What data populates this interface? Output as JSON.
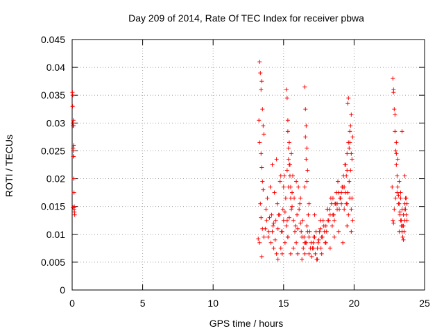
{
  "chart_data": {
    "type": "scatter",
    "title": "Day 209 of 2014, Rate Of TEC Index for receiver pbwa",
    "xlabel": "GPS time / hours",
    "ylabel": "ROTI / TECUs",
    "xlim": [
      0,
      25
    ],
    "ylim": [
      0,
      0.045
    ],
    "xticks": [
      "0",
      "5",
      "10",
      "15",
      "20",
      "25"
    ],
    "yticks": [
      "0",
      "0.005",
      "0.01",
      "0.015",
      "0.02",
      "0.025",
      "0.03",
      "0.035",
      "0.04",
      "0.045"
    ],
    "grid": true,
    "marker": "+",
    "color": "#ff0000",
    "series": [
      {
        "name": "ROTI",
        "x": [
          0.02,
          0.03,
          0.05,
          0.06,
          0.07,
          0.08,
          0.1,
          0.12,
          0.13,
          0.15,
          0.16,
          0.18,
          0.04,
          0.09,
          0.11,
          0.14,
          0.05,
          0.1,
          0.08,
          0.13,
          13.2,
          13.3,
          13.35,
          13.4,
          13.45,
          13.5,
          13.55,
          13.6,
          13.25,
          13.3,
          13.4,
          13.45,
          13.5,
          13.55,
          13.35,
          13.4,
          13.5,
          13.3,
          13.45,
          13.6,
          13.7,
          13.8,
          13.9,
          14.0,
          14.1,
          14.2,
          14.3,
          14.4,
          14.5,
          14.6,
          14.7,
          14.8,
          14.9,
          15.0,
          15.1,
          15.2,
          15.3,
          15.4,
          15.5,
          15.6,
          15.7,
          15.8,
          15.9,
          16.0,
          16.1,
          16.2,
          16.3,
          16.4,
          16.5,
          16.6,
          16.7,
          16.8,
          16.9,
          17.0,
          17.1,
          17.2,
          17.3,
          17.4,
          17.5,
          17.6,
          17.7,
          17.8,
          17.9,
          18.0,
          18.1,
          18.2,
          18.3,
          18.4,
          18.5,
          18.6,
          18.7,
          18.8,
          18.9,
          19.0,
          19.1,
          19.2,
          19.3,
          19.4,
          19.5,
          19.6,
          19.7,
          19.8,
          19.9,
          13.75,
          13.85,
          13.95,
          14.05,
          14.15,
          14.25,
          14.35,
          14.45,
          14.55,
          14.65,
          14.75,
          14.85,
          14.95,
          15.05,
          15.15,
          15.25,
          15.35,
          15.45,
          15.55,
          15.65,
          15.75,
          15.85,
          15.95,
          16.05,
          16.15,
          16.25,
          16.35,
          16.45,
          16.55,
          16.65,
          16.75,
          16.85,
          16.95,
          17.05,
          17.15,
          17.25,
          17.35,
          17.45,
          17.55,
          17.65,
          17.75,
          17.85,
          17.95,
          18.05,
          18.15,
          18.25,
          18.35,
          18.45,
          18.55,
          18.65,
          18.75,
          18.85,
          18.95,
          19.05,
          19.15,
          19.25,
          19.35,
          19.45,
          19.55,
          19.65,
          19.75,
          19.85,
          14.3,
          14.6,
          14.9,
          15.1,
          15.3,
          15.5,
          15.7,
          16.0,
          16.3,
          16.5,
          16.8,
          17.1,
          17.4,
          17.7,
          18.0,
          18.3,
          18.6,
          18.9,
          19.2,
          19.5,
          19.8,
          15.2,
          15.25,
          15.3,
          15.35,
          15.4,
          15.45,
          15.5,
          15.55,
          15.3,
          15.4,
          15.25,
          15.35,
          16.5,
          16.55,
          16.6,
          16.65,
          16.7,
          16.55,
          16.6,
          16.5,
          16.65,
          19.4,
          19.5,
          19.6,
          19.7,
          19.8,
          19.9,
          19.45,
          19.55,
          19.65,
          19.75,
          19.85,
          19.5,
          19.6,
          19.7,
          19.8,
          14.2,
          14.5,
          14.8,
          15.0,
          15.6,
          15.9,
          16.2,
          16.8,
          17.2,
          17.6,
          18.1,
          18.5,
          18.8,
          19.1,
          19.3,
          22.7,
          22.75,
          22.8,
          22.85,
          22.9,
          22.95,
          23.0,
          23.05,
          23.1,
          23.15,
          23.2,
          23.25,
          23.3,
          23.35,
          23.4,
          23.45,
          23.5,
          23.55,
          23.6,
          23.65,
          23.7,
          23.75,
          22.8,
          22.9,
          23.0,
          23.1,
          23.2,
          23.3,
          23.4,
          23.5,
          23.6,
          23.7,
          22.75,
          22.85,
          22.95,
          23.05,
          23.15,
          23.25,
          23.35,
          23.45,
          23.55,
          23.65,
          23.75,
          22.8,
          23.0,
          23.2,
          23.4,
          23.6,
          23.3,
          23.5
        ],
        "y": [
          0.0355,
          0.033,
          0.03,
          0.0295,
          0.0255,
          0.025,
          0.024,
          0.02,
          0.0175,
          0.015,
          0.014,
          0.0135,
          0.035,
          0.0305,
          0.026,
          0.0145,
          0.0148,
          0.0295,
          0.024,
          0.0148,
          0.0092,
          0.041,
          0.039,
          0.036,
          0.0375,
          0.0325,
          0.0295,
          0.028,
          0.0305,
          0.0265,
          0.0245,
          0.022,
          0.0195,
          0.018,
          0.0155,
          0.013,
          0.011,
          0.0085,
          0.006,
          0.0095,
          0.011,
          0.0125,
          0.0095,
          0.013,
          0.0085,
          0.0105,
          0.012,
          0.009,
          0.0065,
          0.011,
          0.0135,
          0.0075,
          0.0105,
          0.0125,
          0.014,
          0.0115,
          0.0095,
          0.013,
          0.0165,
          0.015,
          0.0125,
          0.0105,
          0.0085,
          0.011,
          0.0145,
          0.012,
          0.0095,
          0.0075,
          0.0065,
          0.0085,
          0.0105,
          0.0095,
          0.0075,
          0.006,
          0.0085,
          0.0095,
          0.0105,
          0.0075,
          0.009,
          0.011,
          0.0095,
          0.0125,
          0.0105,
          0.0115,
          0.0145,
          0.0125,
          0.0135,
          0.0155,
          0.0135,
          0.0125,
          0.0155,
          0.0145,
          0.0175,
          0.0165,
          0.0155,
          0.0185,
          0.0145,
          0.0175,
          0.0155,
          0.0135,
          0.0165,
          0.0145,
          0.0125,
          0.0145,
          0.0165,
          0.0105,
          0.0185,
          0.0135,
          0.0115,
          0.0175,
          0.0125,
          0.0155,
          0.0135,
          0.0195,
          0.0105,
          0.0145,
          0.0205,
          0.0165,
          0.0125,
          0.0185,
          0.0225,
          0.0145,
          0.0205,
          0.0165,
          0.0115,
          0.0135,
          0.0185,
          0.0155,
          0.0105,
          0.0125,
          0.0095,
          0.0085,
          0.0115,
          0.0135,
          0.0105,
          0.0085,
          0.0075,
          0.0095,
          0.0065,
          0.0055,
          0.0085,
          0.0105,
          0.0075,
          0.0095,
          0.0115,
          0.0085,
          0.0105,
          0.0125,
          0.0145,
          0.0165,
          0.0115,
          0.0135,
          0.0155,
          0.0175,
          0.0195,
          0.0145,
          0.0165,
          0.0185,
          0.0205,
          0.0225,
          0.0155,
          0.0175,
          0.0195,
          0.0215,
          0.0165,
          0.0075,
          0.0055,
          0.0065,
          0.0085,
          0.0095,
          0.0065,
          0.0075,
          0.0065,
          0.0055,
          0.0085,
          0.0065,
          0.0075,
          0.0055,
          0.0065,
          0.0085,
          0.0075,
          0.0095,
          0.0105,
          0.0085,
          0.0115,
          0.0105,
          0.036,
          0.0345,
          0.0285,
          0.0255,
          0.0225,
          0.0205,
          0.0185,
          0.0245,
          0.0305,
          0.0265,
          0.0215,
          0.0235,
          0.0365,
          0.0325,
          0.0295,
          0.0255,
          0.0215,
          0.0275,
          0.0235,
          0.0185,
          0.0195,
          0.0225,
          0.0245,
          0.0265,
          0.0285,
          0.0315,
          0.0275,
          0.0205,
          0.0335,
          0.0255,
          0.0295,
          0.0235,
          0.0215,
          0.0345,
          0.0265,
          0.0245,
          0.0225,
          0.0235,
          0.0205,
          0.0185,
          0.0175,
          0.0195,
          0.0165,
          0.0155,
          0.0135,
          0.0125,
          0.0145,
          0.0165,
          0.0155,
          0.0175,
          0.0185,
          0.0185,
          0.038,
          0.036,
          0.0325,
          0.0285,
          0.025,
          0.0225,
          0.0205,
          0.0185,
          0.017,
          0.0155,
          0.014,
          0.0125,
          0.0115,
          0.0105,
          0.0095,
          0.009,
          0.0105,
          0.0125,
          0.0145,
          0.0165,
          0.0125,
          0.0355,
          0.0315,
          0.0265,
          0.0235,
          0.0195,
          0.0165,
          0.0145,
          0.0135,
          0.0155,
          0.0135,
          0.0125,
          0.0145,
          0.0165,
          0.0175,
          0.0155,
          0.0135,
          0.0125,
          0.0115,
          0.0145,
          0.0165,
          0.0155,
          0.012,
          0.0245,
          0.0105,
          0.0285,
          0.0205,
          0.0175,
          0.0115
        ]
      }
    ]
  }
}
